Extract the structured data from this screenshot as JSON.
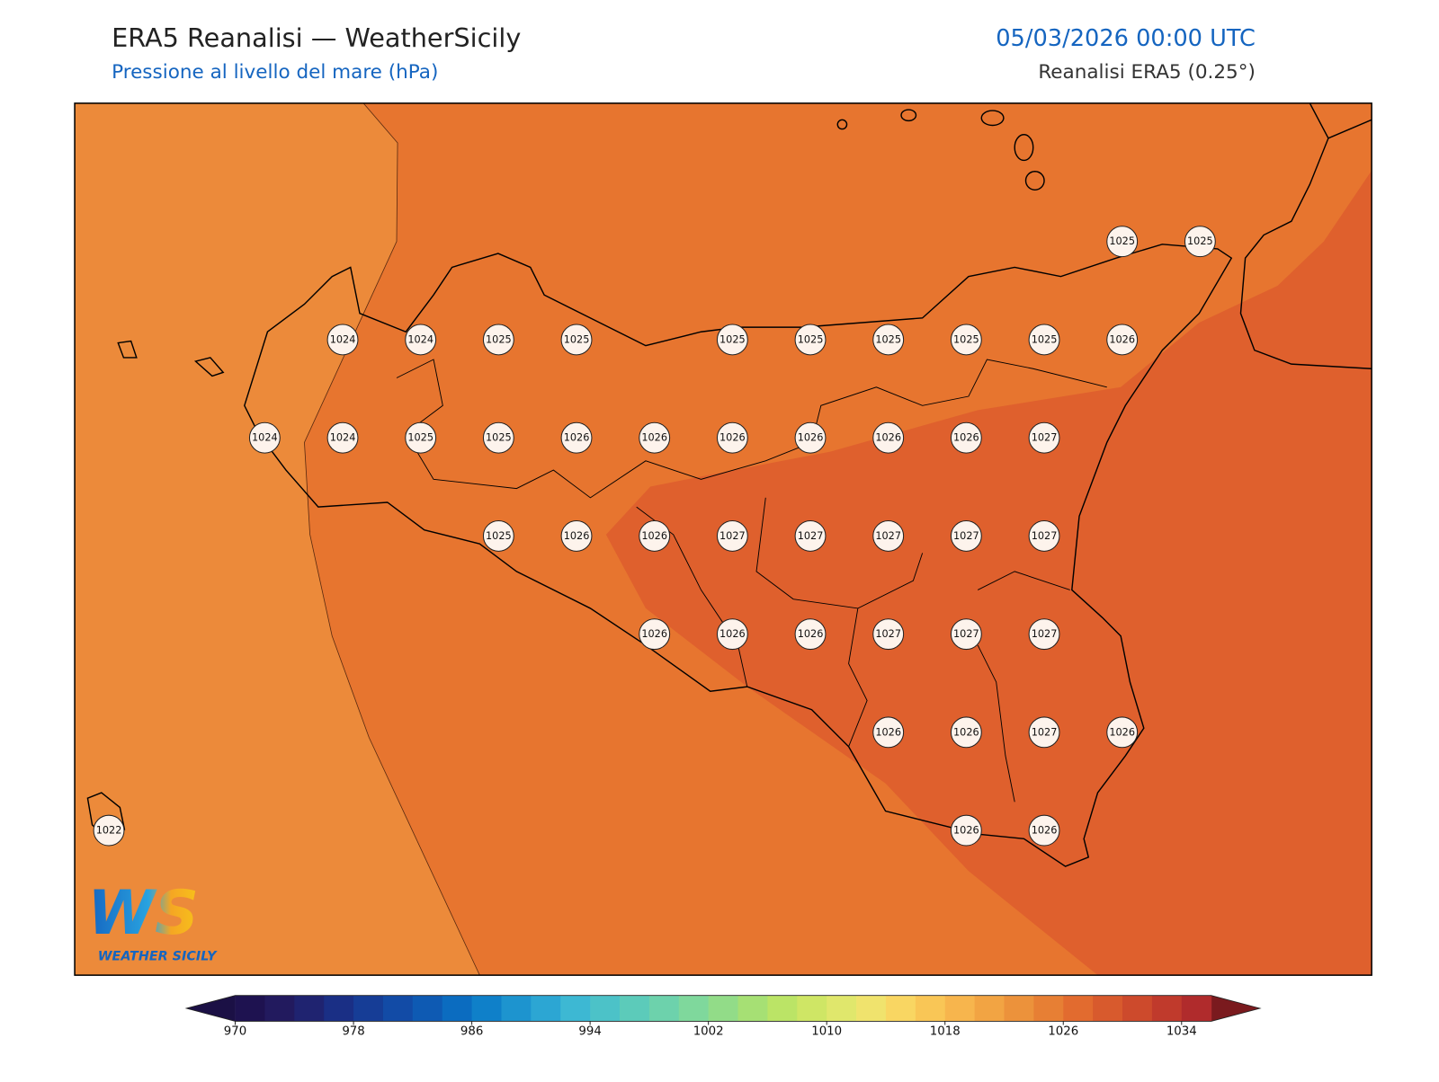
{
  "header": {
    "title": "ERA5 Reanalisi — WeatherSicily",
    "subtitle": "Pressione al livello del mare (hPa)",
    "datetime": "05/03/2026 00:00 UTC",
    "source": "Reanalisi ERA5 (0.25°)"
  },
  "map": {
    "stations": [
      [
        null,
        null,
        null,
        null,
        null,
        null,
        null,
        null,
        null,
        null,
        null,
        null,
        null,
        1025,
        1025
      ],
      [
        null,
        null,
        null,
        1024,
        1024,
        1025,
        1025,
        null,
        1025,
        1025,
        1025,
        1025,
        1025,
        1026,
        null
      ],
      [
        null,
        null,
        1024,
        1024,
        1025,
        1025,
        1026,
        1026,
        1026,
        1026,
        1026,
        1026,
        1027,
        null,
        null
      ],
      [
        null,
        null,
        null,
        null,
        null,
        1025,
        1026,
        1026,
        1027,
        1027,
        1027,
        1027,
        1027,
        null,
        null
      ],
      [
        null,
        null,
        null,
        null,
        null,
        null,
        null,
        1026,
        1026,
        1026,
        1027,
        1027,
        1027,
        null,
        null
      ],
      [
        null,
        null,
        null,
        null,
        null,
        null,
        null,
        null,
        null,
        null,
        1026,
        1026,
        1027,
        1026,
        null
      ],
      [
        1022,
        null,
        null,
        null,
        null,
        null,
        null,
        null,
        null,
        null,
        null,
        1026,
        1026,
        null,
        null
      ]
    ]
  },
  "colorbar": {
    "range": [
      970,
      1036
    ],
    "ticks": [
      970,
      978,
      986,
      994,
      1002,
      1010,
      1018,
      1026,
      1034
    ],
    "colors": [
      "#1e1250",
      "#221a5e",
      "#1f2370",
      "#1a2f85",
      "#163d96",
      "#124ba6",
      "#0e5ab3",
      "#0b6cc0",
      "#0f80c9",
      "#1d94cf",
      "#2ca6d3",
      "#3db8d3",
      "#4cc2c8",
      "#5ccbba",
      "#6dd2ac",
      "#7fd89c",
      "#92dc88",
      "#a6e074",
      "#bbe466",
      "#cfe665",
      "#e0e76c",
      "#f0e36d",
      "#f9d662",
      "#f9c656",
      "#f7b54d",
      "#f2a443",
      "#ec923b",
      "#e77f34",
      "#e26b2f",
      "#d85a2d",
      "#cd4a2c",
      "#c03a2c",
      "#b02b2c"
    ],
    "under_color": "#1b1045",
    "over_color": "#7a1a1e"
  },
  "logo": {
    "initials": "WS",
    "name": "WEATHER SICILY"
  }
}
